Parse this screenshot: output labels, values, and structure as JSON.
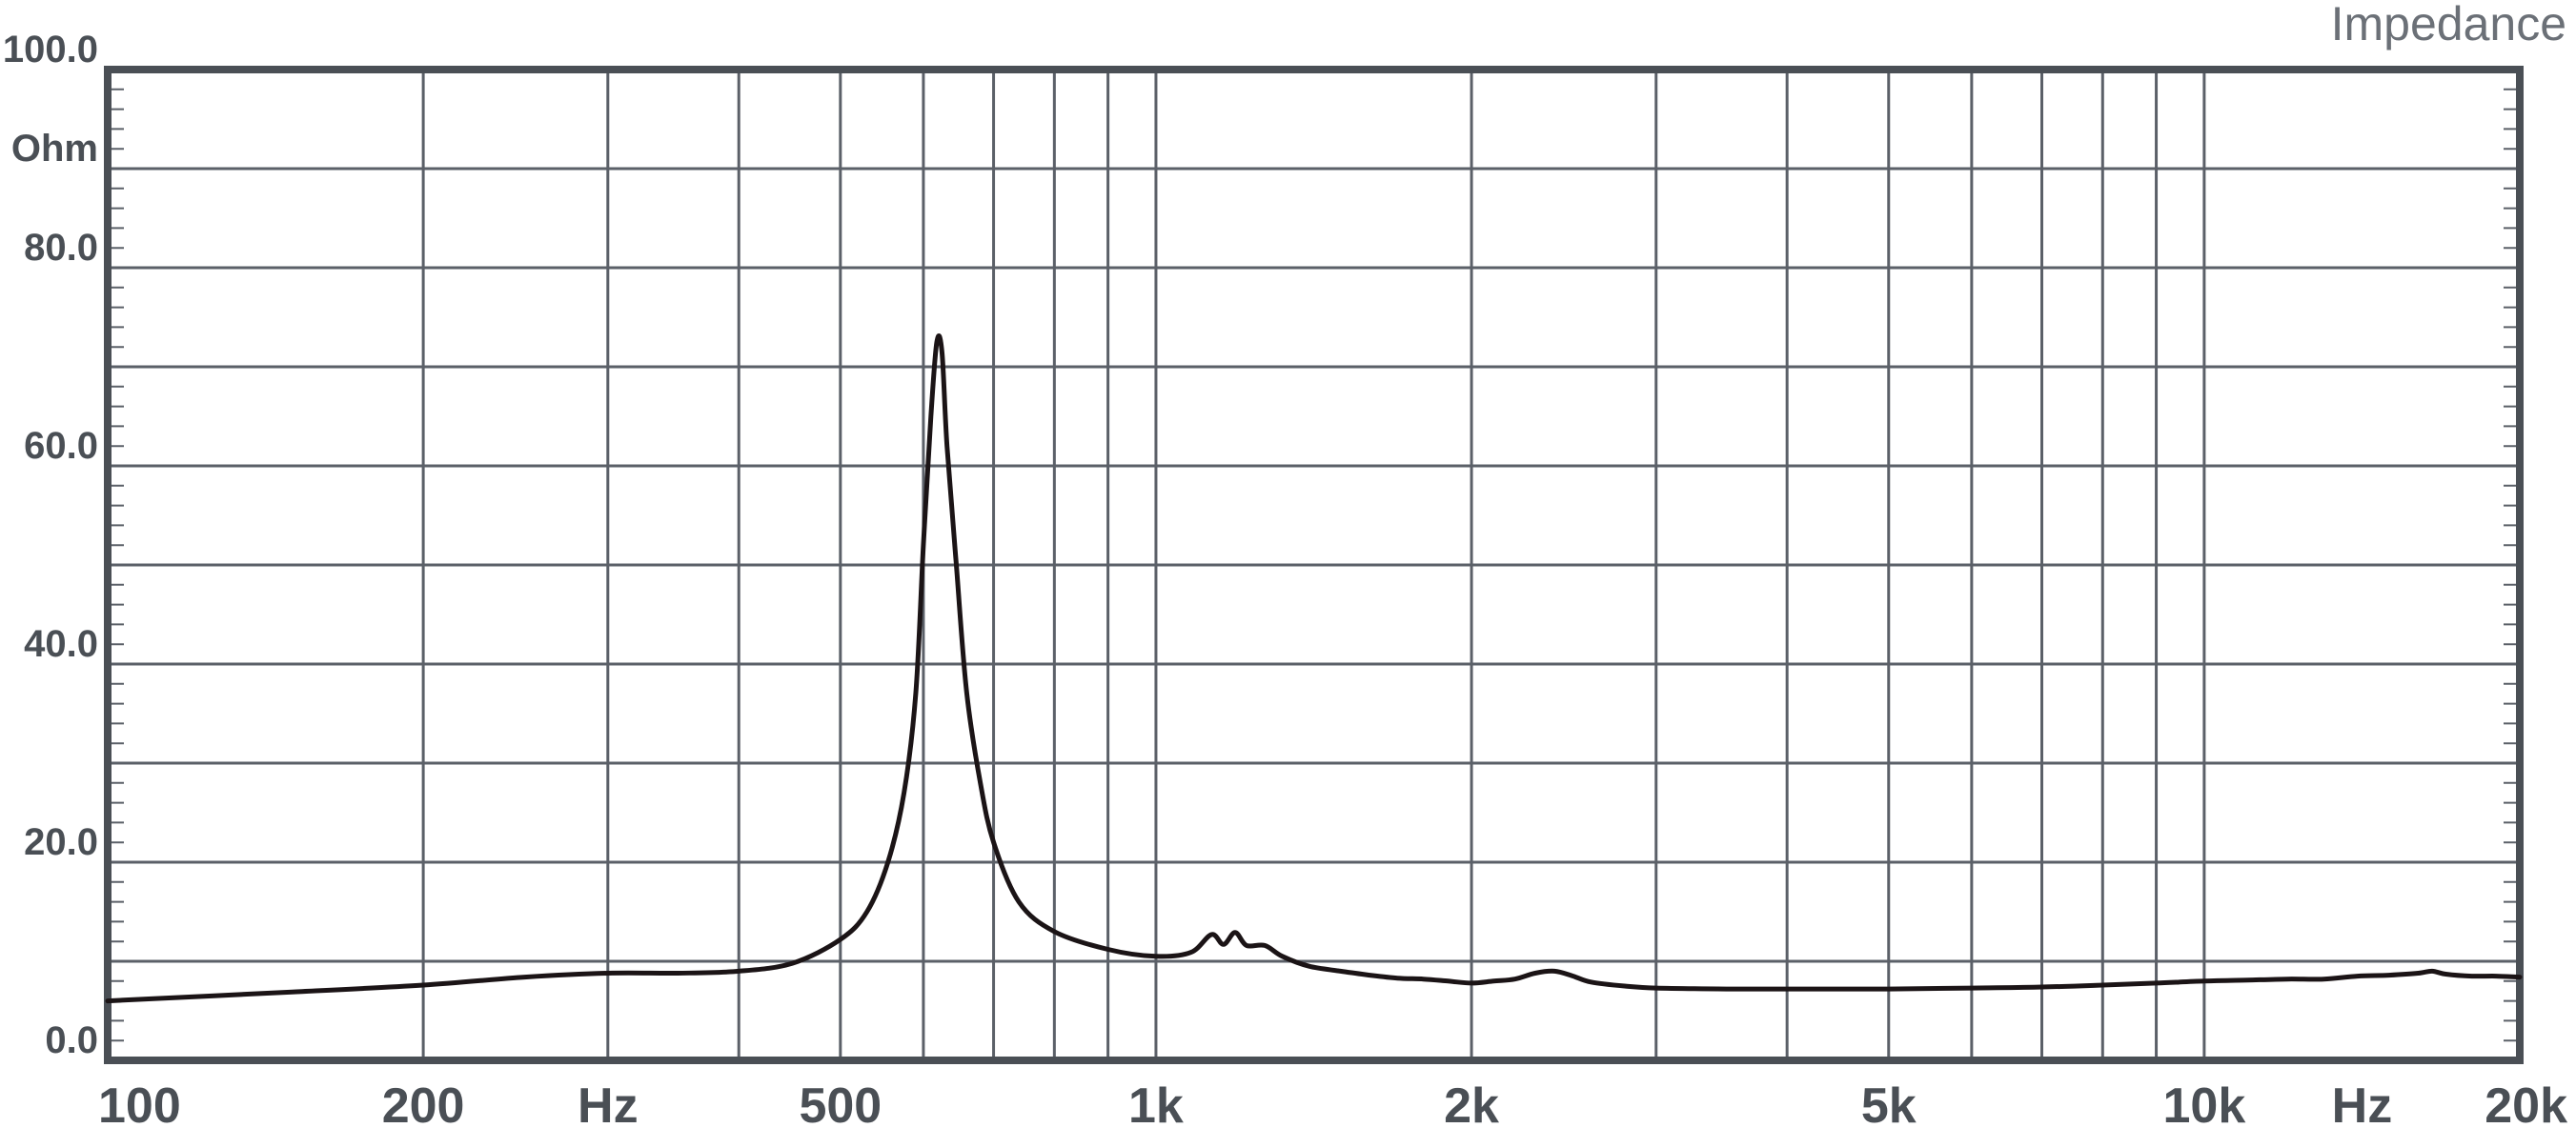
{
  "chart_data": {
    "type": "line",
    "title": "Impedance",
    "xlabel": "Hz",
    "ylabel": "Ohm",
    "xscale": "log",
    "xlim": [
      100,
      20000
    ],
    "ylim": [
      0,
      100
    ],
    "grid": true,
    "x_ticks": [
      {
        "value": 100,
        "label": "100"
      },
      {
        "value": 200,
        "label": "200"
      },
      {
        "value": 500,
        "label": "500"
      },
      {
        "value": 1000,
        "label": "1k"
      },
      {
        "value": 2000,
        "label": "2k"
      },
      {
        "value": 5000,
        "label": "5k"
      },
      {
        "value": 10000,
        "label": "10k"
      },
      {
        "value": 20000,
        "label": "20k"
      }
    ],
    "x_unit_labels": [
      {
        "value": 300,
        "label": "Hz"
      },
      {
        "value": 14142,
        "label": "Hz"
      }
    ],
    "x_gridlines": [
      100,
      200,
      300,
      400,
      500,
      600,
      700,
      800,
      900,
      1000,
      2000,
      3000,
      4000,
      5000,
      6000,
      7000,
      8000,
      9000,
      10000,
      20000
    ],
    "y_ticks": [
      {
        "value": 0,
        "label": "0.0"
      },
      {
        "value": 20,
        "label": "20.0"
      },
      {
        "value": 40,
        "label": "40.0"
      },
      {
        "value": 60,
        "label": "60.0"
      },
      {
        "value": 80,
        "label": "80.0"
      },
      {
        "value": 100,
        "label": "100.0"
      }
    ],
    "y_unit_label": {
      "value": 90,
      "label": "Ohm"
    },
    "y_gridlines": [
      0,
      10,
      20,
      30,
      40,
      50,
      60,
      70,
      80,
      90,
      100
    ],
    "series": [
      {
        "points": [
          [
            100,
            6.0
          ],
          [
            150,
            6.9
          ],
          [
            200,
            7.6
          ],
          [
            250,
            8.4
          ],
          [
            300,
            8.8
          ],
          [
            350,
            8.8
          ],
          [
            400,
            9.0
          ],
          [
            450,
            9.8
          ],
          [
            500,
            12.2
          ],
          [
            530,
            15.0
          ],
          [
            555,
            20.0
          ],
          [
            575,
            27.0
          ],
          [
            590,
            37.0
          ],
          [
            600,
            52.0
          ],
          [
            610,
            65.0
          ],
          [
            618,
            72.5
          ],
          [
            625,
            71.5
          ],
          [
            632,
            62.0
          ],
          [
            645,
            50.0
          ],
          [
            660,
            37.0
          ],
          [
            680,
            28.0
          ],
          [
            700,
            22.0
          ],
          [
            740,
            16.0
          ],
          [
            800,
            13.0
          ],
          [
            900,
            11.2
          ],
          [
            1000,
            10.5
          ],
          [
            1080,
            10.9
          ],
          [
            1130,
            12.7
          ],
          [
            1160,
            11.7
          ],
          [
            1190,
            12.9
          ],
          [
            1220,
            11.6
          ],
          [
            1270,
            11.6
          ],
          [
            1320,
            10.5
          ],
          [
            1400,
            9.5
          ],
          [
            1500,
            9.0
          ],
          [
            1600,
            8.6
          ],
          [
            1700,
            8.3
          ],
          [
            1800,
            8.2
          ],
          [
            1900,
            8.0
          ],
          [
            2000,
            7.8
          ],
          [
            2100,
            8.0
          ],
          [
            2200,
            8.2
          ],
          [
            2300,
            8.8
          ],
          [
            2400,
            9.0
          ],
          [
            2500,
            8.5
          ],
          [
            2600,
            7.9
          ],
          [
            2800,
            7.5
          ],
          [
            3000,
            7.3
          ],
          [
            3500,
            7.2
          ],
          [
            4000,
            7.2
          ],
          [
            5000,
            7.2
          ],
          [
            6000,
            7.3
          ],
          [
            7000,
            7.4
          ],
          [
            8000,
            7.6
          ],
          [
            9000,
            7.8
          ],
          [
            10000,
            8.0
          ],
          [
            11000,
            8.1
          ],
          [
            12000,
            8.2
          ],
          [
            13000,
            8.2
          ],
          [
            14000,
            8.5
          ],
          [
            15000,
            8.6
          ],
          [
            16000,
            8.8
          ],
          [
            16500,
            9.0
          ],
          [
            17000,
            8.7
          ],
          [
            18000,
            8.5
          ],
          [
            19000,
            8.5
          ],
          [
            20000,
            8.4
          ]
        ]
      }
    ]
  }
}
